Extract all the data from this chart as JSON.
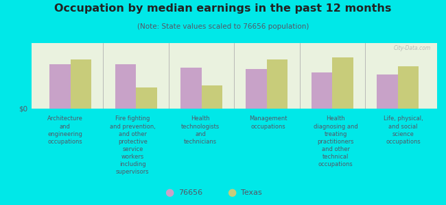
{
  "title": "Occupation by median earnings in the past 12 months",
  "subtitle": "(Note: State values scaled to 76656 population)",
  "background_color": "#00e8e8",
  "plot_bg_color": "#eaf2df",
  "plot_bg_top_color": "#f5faf0",
  "categories": [
    "Architecture\nand\nengineering\noccupations",
    "Fire fighting\nand prevention,\nand other\nprotective\nservice\nworkers\nincluding\nsupervisors",
    "Health\ntechnologists\nand\ntechnicians",
    "Management\noccupations",
    "Health\ndiagnosing and\ntreating\npractitioners\nand other\ntechnical\noccupations",
    "Life, physical,\nand social\nscience\noccupations"
  ],
  "values_76656": [
    0.68,
    0.68,
    0.62,
    0.6,
    0.55,
    0.52
  ],
  "values_texas": [
    0.75,
    0.32,
    0.35,
    0.75,
    0.78,
    0.65
  ],
  "color_76656": "#c8a2c8",
  "color_texas": "#c8cc7a",
  "legend_labels": [
    "76656",
    "Texas"
  ],
  "ylabel": "$0",
  "bar_width": 0.32,
  "watermark": "City-Data.com",
  "divider_color": "#b0b0b0",
  "text_color": "#555566"
}
